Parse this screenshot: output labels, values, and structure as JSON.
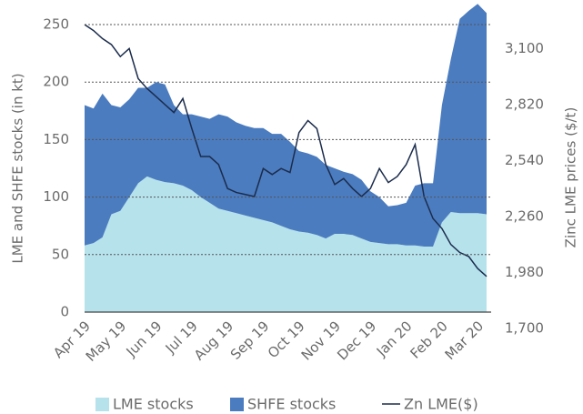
{
  "chart_data": {
    "type": "stacked-area-line",
    "y_label": "LME and SHFE stocks (in kt)",
    "y2_label": "Zinc LME prices ($/t)",
    "x": [
      0,
      1,
      2,
      3,
      4,
      5,
      6,
      7,
      8,
      9,
      10,
      11,
      12,
      13,
      14,
      15,
      16,
      17,
      18,
      19,
      20,
      21,
      22,
      23,
      24,
      25,
      26,
      27,
      28,
      29,
      30,
      31,
      32,
      33,
      34,
      35,
      36,
      37,
      38,
      39,
      40,
      41,
      42,
      43,
      44,
      45
    ],
    "xlim": [
      0,
      45
    ],
    "xticks": [
      {
        "value": 0,
        "label": "Apr 19"
      },
      {
        "value": 4,
        "label": "May 19"
      },
      {
        "value": 8,
        "label": "Jun 19"
      },
      {
        "value": 12,
        "label": "Jul 19"
      },
      {
        "value": 16,
        "label": "Aug 19"
      },
      {
        "value": 20,
        "label": "Sep 19"
      },
      {
        "value": 24,
        "label": "Oct 19"
      },
      {
        "value": 28,
        "label": "Nov 19"
      },
      {
        "value": 32,
        "label": "Dec 19"
      },
      {
        "value": 36,
        "label": "Jan 20"
      },
      {
        "value": 40,
        "label": "Feb 20"
      },
      {
        "value": 44,
        "label": "Mar 20"
      }
    ],
    "ylim": [
      0,
      250
    ],
    "yticks": [
      0,
      50,
      100,
      150,
      200,
      250
    ],
    "y2lim": [
      1700,
      3220
    ],
    "y2ticks": [
      {
        "value": 1700,
        "label": "1,700"
      },
      {
        "value": 1980,
        "label": "1,980"
      },
      {
        "value": 2260,
        "label": "2,260"
      },
      {
        "value": 2540,
        "label": "2,540"
      },
      {
        "value": 2820,
        "label": "2,820"
      },
      {
        "value": 3100,
        "label": "3,100"
      }
    ],
    "grid": true,
    "series": [
      {
        "name": "LME stocks",
        "color": "#b6e2ec",
        "kind": "area",
        "values": [
          58,
          60,
          65,
          85,
          88,
          100,
          112,
          118,
          115,
          113,
          112,
          110,
          106,
          100,
          95,
          90,
          88,
          86,
          84,
          82,
          80,
          78,
          75,
          72,
          70,
          69,
          67,
          64,
          68,
          68,
          67,
          64,
          61,
          60,
          59,
          59,
          58,
          58,
          57,
          57,
          78,
          87,
          86,
          86,
          86,
          85
        ]
      },
      {
        "name": "SHFE stocks",
        "color": "#4b7cbf",
        "kind": "area",
        "values": [
          122,
          117,
          125,
          95,
          90,
          85,
          83,
          77,
          85,
          85,
          68,
          62,
          66,
          70,
          73,
          82,
          82,
          79,
          78,
          78,
          80,
          77,
          80,
          76,
          70,
          69,
          68,
          64,
          57,
          54,
          53,
          51,
          44,
          40,
          33,
          34,
          37,
          52,
          55,
          55,
          102,
          133,
          169,
          176,
          182,
          175
        ]
      },
      {
        "name": "Zn LME($)",
        "color": "#1b2c4c",
        "kind": "line",
        "axis": "y2",
        "values": [
          3220,
          3190,
          3150,
          3120,
          3060,
          3100,
          2950,
          2900,
          2860,
          2820,
          2780,
          2850,
          2700,
          2560,
          2560,
          2520,
          2400,
          2380,
          2370,
          2360,
          2500,
          2470,
          2500,
          2480,
          2680,
          2740,
          2700,
          2520,
          2420,
          2450,
          2400,
          2360,
          2400,
          2500,
          2430,
          2460,
          2520,
          2620,
          2360,
          2250,
          2200,
          2120,
          2080,
          2060,
          2000,
          1960
        ]
      }
    ]
  }
}
